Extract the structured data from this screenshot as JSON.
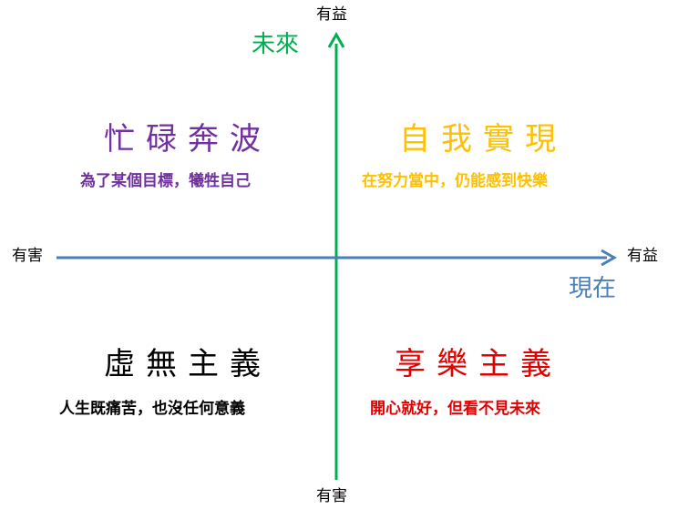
{
  "colors": {
    "future_axis": "#00B050",
    "present_axis": "#4A7EBB",
    "top_left": "#7030A0",
    "top_right": "#FFC000",
    "bottom_left": "#000000",
    "bottom_right": "#E00000"
  },
  "axes": {
    "vertical": {
      "name": "未來",
      "top_end": "有益",
      "bottom_end": "有害"
    },
    "horizontal": {
      "name": "現在",
      "left_end": "有害",
      "right_end": "有益"
    }
  },
  "quadrants": {
    "top_left": {
      "title": "忙碌奔波",
      "description": "為了某個目標，犧牲自己"
    },
    "top_right": {
      "title": "自我實現",
      "description": "在努力當中，仍能感到快樂"
    },
    "bottom_left": {
      "title": "虛無主義",
      "description": "人生既痛苦，也沒任何意義"
    },
    "bottom_right": {
      "title": "享樂主義",
      "description": "開心就好，但看不見未來"
    }
  }
}
